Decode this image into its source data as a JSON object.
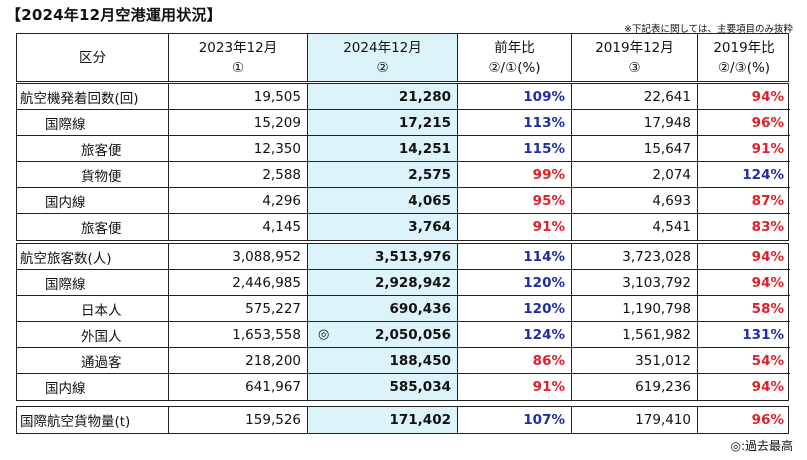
{
  "title": "【2024年12月空港運用状況】",
  "note": "※下記表に関しては、主要項目のみ抜粋",
  "legend": "◎:過去最高",
  "header": {
    "kubun": "区分",
    "col1_line1": "2023年12月",
    "col1_line2": "①",
    "col2_line1": "2024年12月",
    "col2_line2": "②",
    "col3_line1": "前年比",
    "col3_line2": "②/①(%)",
    "col4_line1": "2019年12月",
    "col4_line2": "③",
    "col5_line1": "2019年比",
    "col5_line2": "②/③(%)"
  },
  "colors": {
    "blue": "#1f2ea8",
    "red": "#e0202a",
    "highlight": "#ddf3fa"
  },
  "sections": [
    {
      "rows": [
        {
          "label": "航空機発着回数(回)",
          "indent": 0,
          "y2023": "19,505",
          "y2024": "21,280",
          "mark": "",
          "yoy": "109%",
          "yoy_color": "blue",
          "y2019": "22,641",
          "vs2019": "94%",
          "vs2019_color": "red"
        },
        {
          "label": "国際線",
          "indent": 1,
          "y2023": "15,209",
          "y2024": "17,215",
          "mark": "",
          "yoy": "113%",
          "yoy_color": "blue",
          "y2019": "17,948",
          "vs2019": "96%",
          "vs2019_color": "red"
        },
        {
          "label": "旅客便",
          "indent": 2,
          "y2023": "12,350",
          "y2024": "14,251",
          "mark": "",
          "yoy": "115%",
          "yoy_color": "blue",
          "y2019": "15,647",
          "vs2019": "91%",
          "vs2019_color": "red"
        },
        {
          "label": "貨物便",
          "indent": 2,
          "y2023": "2,588",
          "y2024": "2,575",
          "mark": "",
          "yoy": "99%",
          "yoy_color": "red",
          "y2019": "2,074",
          "vs2019": "124%",
          "vs2019_color": "blue"
        },
        {
          "label": "国内線",
          "indent": 1,
          "y2023": "4,296",
          "y2024": "4,065",
          "mark": "",
          "yoy": "95%",
          "yoy_color": "red",
          "y2019": "4,693",
          "vs2019": "87%",
          "vs2019_color": "red"
        },
        {
          "label": "旅客便",
          "indent": 2,
          "y2023": "4,145",
          "y2024": "3,764",
          "mark": "",
          "yoy": "91%",
          "yoy_color": "red",
          "y2019": "4,541",
          "vs2019": "83%",
          "vs2019_color": "red"
        }
      ]
    },
    {
      "rows": [
        {
          "label": "航空旅客数(人)",
          "indent": 0,
          "y2023": "3,088,952",
          "y2024": "3,513,976",
          "mark": "",
          "yoy": "114%",
          "yoy_color": "blue",
          "y2019": "3,723,028",
          "vs2019": "94%",
          "vs2019_color": "red"
        },
        {
          "label": "国際線",
          "indent": 1,
          "y2023": "2,446,985",
          "y2024": "2,928,942",
          "mark": "",
          "yoy": "120%",
          "yoy_color": "blue",
          "y2019": "3,103,792",
          "vs2019": "94%",
          "vs2019_color": "red"
        },
        {
          "label": "日本人",
          "indent": 2,
          "y2023": "575,227",
          "y2024": "690,436",
          "mark": "",
          "yoy": "120%",
          "yoy_color": "blue",
          "y2019": "1,190,798",
          "vs2019": "58%",
          "vs2019_color": "red"
        },
        {
          "label": "外国人",
          "indent": 2,
          "y2023": "1,653,558",
          "y2024": "2,050,056",
          "mark": "◎",
          "yoy": "124%",
          "yoy_color": "blue",
          "y2019": "1,561,982",
          "vs2019": "131%",
          "vs2019_color": "blue"
        },
        {
          "label": "通過客",
          "indent": 2,
          "y2023": "218,200",
          "y2024": "188,450",
          "mark": "",
          "yoy": "86%",
          "yoy_color": "red",
          "y2019": "351,012",
          "vs2019": "54%",
          "vs2019_color": "red"
        },
        {
          "label": "国内線",
          "indent": 1,
          "y2023": "641,967",
          "y2024": "585,034",
          "mark": "",
          "yoy": "91%",
          "yoy_color": "red",
          "y2019": "619,236",
          "vs2019": "94%",
          "vs2019_color": "red"
        }
      ]
    },
    {
      "rows": [
        {
          "label": "国際航空貨物量(t)",
          "indent": 0,
          "y2023": "159,526",
          "y2024": "171,402",
          "mark": "",
          "yoy": "107%",
          "yoy_color": "blue",
          "y2019": "179,410",
          "vs2019": "96%",
          "vs2019_color": "red"
        }
      ]
    }
  ]
}
